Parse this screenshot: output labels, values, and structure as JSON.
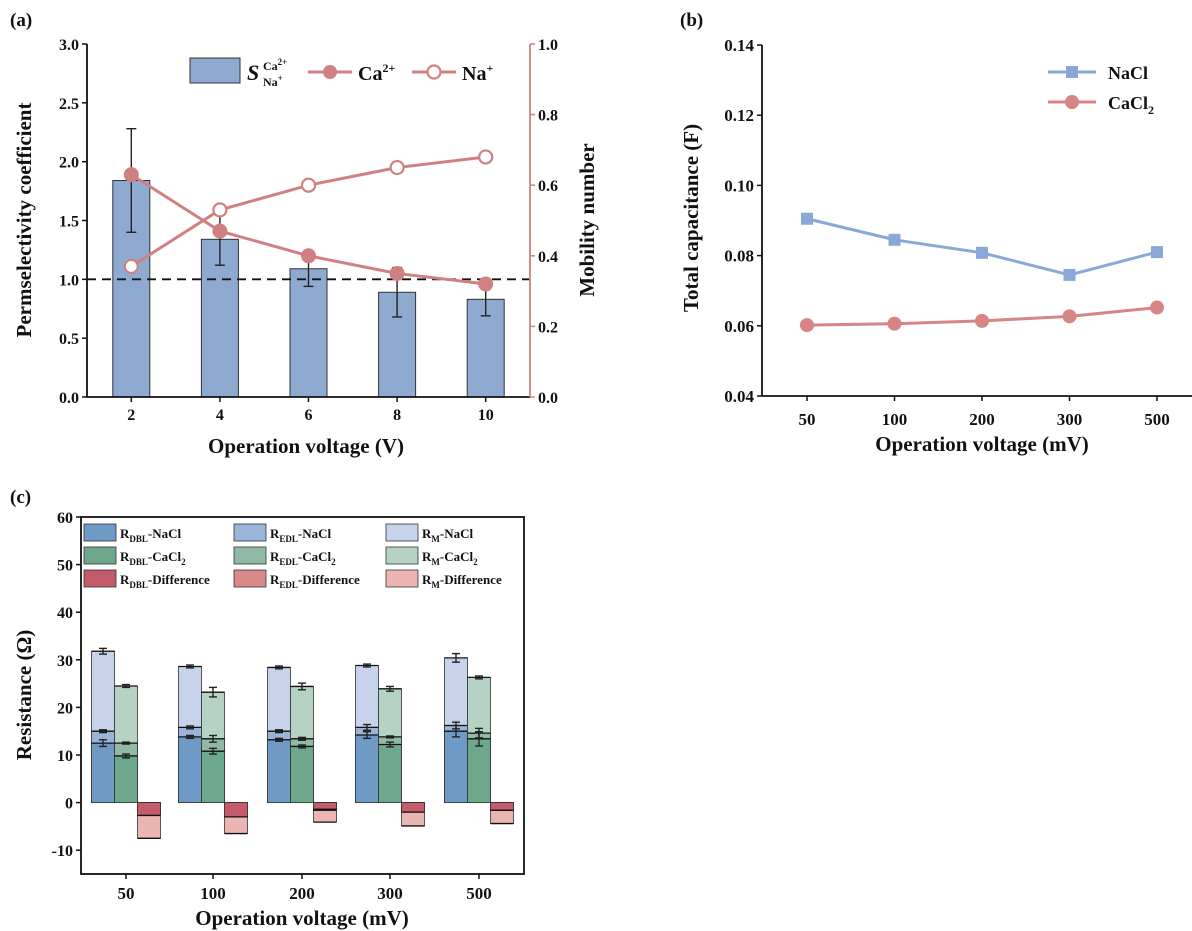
{
  "colors": {
    "bar_a": "#8eaad0",
    "ca": "#d08080",
    "nacl_line": "#8aa8d6",
    "cacl2_line": "#d68484",
    "axis": "#111111",
    "nacl_dbl": "#6f9ac6",
    "nacl_edl": "#9ab4da",
    "nacl_m": "#c6d3ea",
    "cacl2_dbl": "#6ea88c",
    "cacl2_edl": "#92b9a6",
    "cacl2_m": "#b5d2c4",
    "diff_dbl": "#c45a6a",
    "diff_edl": "#d98a88",
    "diff_m": "#ebb5b1"
  },
  "chart_data": [
    {
      "panel_label": "(a)",
      "type": "bar",
      "categories": [
        "2",
        "4",
        "6",
        "8",
        "10"
      ],
      "xlabel": "Operation voltage (V)",
      "ylabel": "Permselectivity coefficient",
      "y2label": "Mobility number",
      "ylim": [
        0,
        3.0
      ],
      "y2lim": [
        0,
        1.0
      ],
      "yticks": [
        "0.0",
        "0.5",
        "1.0",
        "1.5",
        "2.0",
        "2.5",
        "3.0"
      ],
      "y2ticks": [
        "0.0",
        "0.2",
        "0.4",
        "0.6",
        "0.8",
        "1.0"
      ],
      "reference_line": 1.0,
      "legend": {
        "s_main": "S",
        "s_sup": "Ca",
        "s_sup_charge": "2+",
        "s_sub": "Na",
        "s_sub_charge": "+",
        "ca_label": "Ca",
        "ca_charge": "2+",
        "na_label": "Na",
        "na_charge": "+"
      },
      "series": [
        {
          "values": [
            1.84,
            1.34,
            1.09,
            0.89,
            0.83
          ],
          "errors": [
            0.44,
            0.22,
            0.15,
            0.21,
            0.14
          ]
        },
        {
          "values": [
            0.63,
            0.47,
            0.4,
            0.35,
            0.32
          ]
        },
        {
          "values": [
            0.37,
            0.53,
            0.6,
            0.65,
            0.68
          ]
        }
      ]
    },
    {
      "panel_label": "(b)",
      "type": "line",
      "categories": [
        "50",
        "100",
        "200",
        "300",
        "500"
      ],
      "xlabel": "Operation voltage (mV)",
      "ylabel": "Total capacitance (F)",
      "ylim": [
        0.04,
        0.14
      ],
      "yticks": [
        "0.04",
        "0.06",
        "0.08",
        "0.10",
        "0.12",
        "0.14"
      ],
      "series": [
        {
          "name": "NaCl",
          "values": [
            0.0905,
            0.0845,
            0.0808,
            0.0745,
            0.081
          ]
        },
        {
          "name": "CaCl",
          "name_sub": "2",
          "values": [
            0.0602,
            0.0606,
            0.0614,
            0.0627,
            0.0652
          ]
        }
      ]
    },
    {
      "panel_label": "(c)",
      "type": "bar",
      "categories": [
        "50",
        "100",
        "200",
        "300",
        "500"
      ],
      "xlabel": "Operation voltage (mV)",
      "ylabel": "Resistance (Ω)",
      "ylim": [
        -15,
        60
      ],
      "yticks": [
        "-10",
        "0",
        "10",
        "20",
        "30",
        "40",
        "50",
        "60"
      ],
      "legend": [
        {
          "r": "R",
          "sub": "DBL",
          "rest": "-NaCl",
          "rest_sub": ""
        },
        {
          "r": "R",
          "sub": "EDL",
          "rest": "-NaCl",
          "rest_sub": ""
        },
        {
          "r": "R",
          "sub": "M",
          "rest": "-NaCl",
          "rest_sub": ""
        },
        {
          "r": "R",
          "sub": "DBL",
          "rest": "-CaCl",
          "rest_sub": "2"
        },
        {
          "r": "R",
          "sub": "EDL",
          "rest": "-CaCl",
          "rest_sub": "2"
        },
        {
          "r": "R",
          "sub": "M",
          "rest": "-CaCl",
          "rest_sub": "2"
        },
        {
          "r": "R",
          "sub": "DBL",
          "rest": "-Difference",
          "rest_sub": ""
        },
        {
          "r": "R",
          "sub": "EDL",
          "rest": "-Difference",
          "rest_sub": ""
        },
        {
          "r": "R",
          "sub": "M",
          "rest": "-Difference",
          "rest_sub": ""
        }
      ],
      "stacks": {
        "NaCl": {
          "cumulative": [
            [
              12.5,
              15.0,
              31.8
            ],
            [
              13.8,
              15.8,
              28.6
            ],
            [
              13.2,
              15.0,
              28.4
            ],
            [
              14.2,
              15.8,
              28.8
            ],
            [
              15.0,
              16.2,
              30.4
            ]
          ],
          "errors": [
            [
              0.7,
              0.3,
              0.6
            ],
            [
              0.3,
              0.3,
              0.3
            ],
            [
              0.3,
              0.3,
              0.3
            ],
            [
              0.7,
              0.6,
              0.3
            ],
            [
              1.2,
              0.7,
              0.9
            ]
          ]
        },
        "CaCl2": {
          "cumulative": [
            [
              9.8,
              12.5,
              24.5
            ],
            [
              10.8,
              13.4,
              23.2
            ],
            [
              11.8,
              13.4,
              24.4
            ],
            [
              12.2,
              13.8,
              23.9
            ],
            [
              13.4,
              14.6,
              26.3
            ]
          ],
          "errors": [
            [
              0.4,
              0.2,
              0.3
            ],
            [
              0.6,
              0.7,
              1.0
            ],
            [
              0.3,
              0.3,
              0.7
            ],
            [
              0.5,
              0.2,
              0.5
            ],
            [
              1.5,
              1.0,
              0.3
            ]
          ]
        },
        "Difference": {
          "cumulative": [
            [
              -2.7,
              -2.5,
              -7.5
            ],
            [
              -3.0,
              -2.4,
              -6.5
            ],
            [
              -1.4,
              -1.6,
              -4.1
            ],
            [
              -2.0,
              -1.9,
              -4.9
            ],
            [
              -1.6,
              -1.6,
              -4.4
            ]
          ]
        }
      }
    }
  ]
}
